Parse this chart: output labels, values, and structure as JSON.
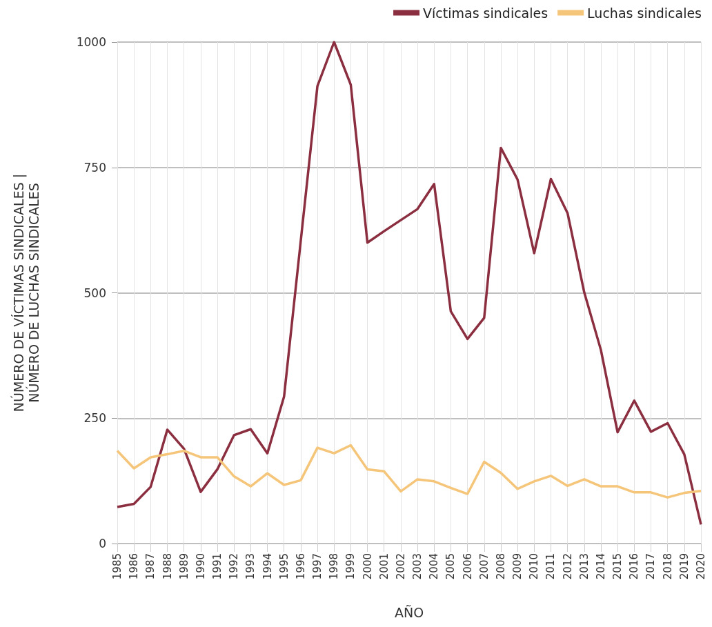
{
  "chart_data": {
    "type": "line",
    "xlabel": "AÑO",
    "ylabel": "NÚMERO DE VÍCTIMAS SINDICALES |\nNÚMERO DE LUCHAS SINDICALES",
    "categories": [
      "1985",
      "1986",
      "1987",
      "1988",
      "1989",
      "1990",
      "1991",
      "1992",
      "1993",
      "1994",
      "1995",
      "1996",
      "1997",
      "1998",
      "1999",
      "2000",
      "2001",
      "2002",
      "2003",
      "2004",
      "2005",
      "2006",
      "2007",
      "2008",
      "2009",
      "2010",
      "2011",
      "2012",
      "2013",
      "2014",
      "2015",
      "2016",
      "2017",
      "2018",
      "2019",
      "2020"
    ],
    "series": [
      {
        "name": "Víctimas sindicales",
        "color": "#8b2e3f",
        "values": [
          73,
          79,
          113,
          227,
          189,
          103,
          148,
          216,
          228,
          180,
          293,
          603,
          912,
          1000,
          915,
          600,
          623,
          645,
          667,
          717,
          463,
          408,
          450,
          789,
          726,
          579,
          727,
          659,
          501,
          386,
          222,
          285,
          223,
          240,
          178,
          38
        ]
      },
      {
        "name": "Luchas sindicales",
        "color": "#f5c57a",
        "values": [
          185,
          150,
          172,
          178,
          185,
          172,
          172,
          134,
          114,
          140,
          117,
          126,
          191,
          180,
          196,
          148,
          144,
          104,
          128,
          124,
          111,
          99,
          163,
          141,
          109,
          124,
          135,
          115,
          128,
          114,
          114,
          102,
          102,
          92,
          101,
          105
        ]
      }
    ],
    "ylim": [
      0,
      1000
    ],
    "yticks": [
      0,
      250,
      500,
      750,
      1000
    ],
    "grid": true,
    "legend": "top right",
    "marker": "none",
    "line_style": "solid"
  }
}
